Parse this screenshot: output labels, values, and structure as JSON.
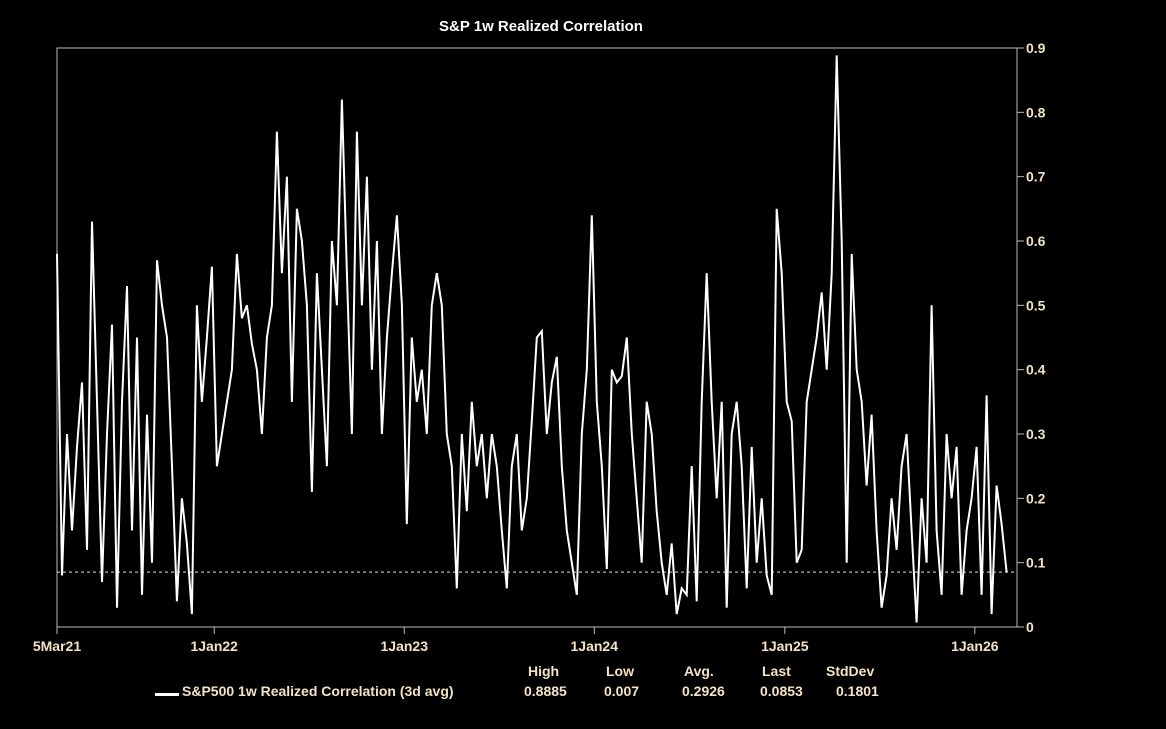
{
  "chart_data": {
    "type": "line",
    "title": "S&P 1w Realized Correlation",
    "xlabel": "",
    "ylabel": "",
    "x_start": "2021-03-05",
    "x_end": "2026-03-03",
    "x_axis_max": "2026-03-23",
    "x_ticks": [
      {
        "label": "5Mar21",
        "date": "2021-03-05"
      },
      {
        "label": "1Jan22",
        "date": "2022-01-01"
      },
      {
        "label": "1Jan23",
        "date": "2023-01-01"
      },
      {
        "label": "1Jan24",
        "date": "2024-01-01"
      },
      {
        "label": "1Jan25",
        "date": "2025-01-01"
      },
      {
        "label": "1Jan26",
        "date": "2026-01-01"
      }
    ],
    "ylim": [
      0,
      0.9
    ],
    "y_ticks": [
      "0",
      "0.1",
      "0.2",
      "0.3",
      "0.4",
      "0.5",
      "0.6",
      "0.7",
      "0.8",
      "0.9"
    ],
    "y_axis_position": "right",
    "grid": false,
    "reference_line": {
      "value": 0.0853,
      "style": "dashed"
    },
    "series": [
      {
        "name": "S&P500 1w Realized Correlation (3d avg)",
        "color": "#ffffff",
        "values": [
          0.58,
          0.08,
          0.3,
          0.15,
          0.28,
          0.38,
          0.12,
          0.63,
          0.35,
          0.07,
          0.3,
          0.47,
          0.03,
          0.35,
          0.53,
          0.15,
          0.45,
          0.05,
          0.33,
          0.1,
          0.57,
          0.5,
          0.45,
          0.25,
          0.04,
          0.2,
          0.13,
          0.02,
          0.5,
          0.35,
          0.45,
          0.56,
          0.25,
          0.3,
          0.35,
          0.4,
          0.58,
          0.48,
          0.5,
          0.44,
          0.4,
          0.3,
          0.45,
          0.5,
          0.77,
          0.55,
          0.7,
          0.35,
          0.65,
          0.6,
          0.5,
          0.21,
          0.55,
          0.4,
          0.25,
          0.6,
          0.5,
          0.82,
          0.55,
          0.3,
          0.77,
          0.5,
          0.7,
          0.4,
          0.6,
          0.3,
          0.45,
          0.55,
          0.64,
          0.5,
          0.16,
          0.45,
          0.35,
          0.4,
          0.3,
          0.5,
          0.55,
          0.5,
          0.3,
          0.25,
          0.06,
          0.3,
          0.18,
          0.35,
          0.25,
          0.3,
          0.2,
          0.3,
          0.25,
          0.15,
          0.06,
          0.25,
          0.3,
          0.15,
          0.2,
          0.32,
          0.45,
          0.46,
          0.3,
          0.38,
          0.42,
          0.25,
          0.15,
          0.1,
          0.05,
          0.3,
          0.4,
          0.64,
          0.35,
          0.25,
          0.09,
          0.4,
          0.38,
          0.39,
          0.45,
          0.3,
          0.2,
          0.1,
          0.35,
          0.3,
          0.18,
          0.1,
          0.05,
          0.13,
          0.02,
          0.06,
          0.05,
          0.25,
          0.04,
          0.35,
          0.55,
          0.35,
          0.2,
          0.35,
          0.03,
          0.3,
          0.35,
          0.25,
          0.06,
          0.28,
          0.1,
          0.2,
          0.08,
          0.05,
          0.65,
          0.55,
          0.35,
          0.32,
          0.1,
          0.12,
          0.35,
          0.4,
          0.45,
          0.52,
          0.4,
          0.55,
          0.8885,
          0.6,
          0.1,
          0.58,
          0.4,
          0.35,
          0.22,
          0.33,
          0.15,
          0.03,
          0.08,
          0.2,
          0.12,
          0.25,
          0.3,
          0.15,
          0.007,
          0.2,
          0.1,
          0.5,
          0.15,
          0.05,
          0.3,
          0.2,
          0.28,
          0.05,
          0.15,
          0.2,
          0.28,
          0.05,
          0.36,
          0.02,
          0.22,
          0.16,
          0.0853
        ]
      }
    ],
    "legend": {
      "placement": "bottom",
      "headers": [
        "High",
        "Low",
        "Avg.",
        "Last",
        "StdDev"
      ],
      "label": "S&P500 1w Realized Correlation (3d avg)",
      "stats": [
        "0.8885",
        "0.007",
        "0.2926",
        "0.0853",
        "0.1801"
      ]
    }
  }
}
